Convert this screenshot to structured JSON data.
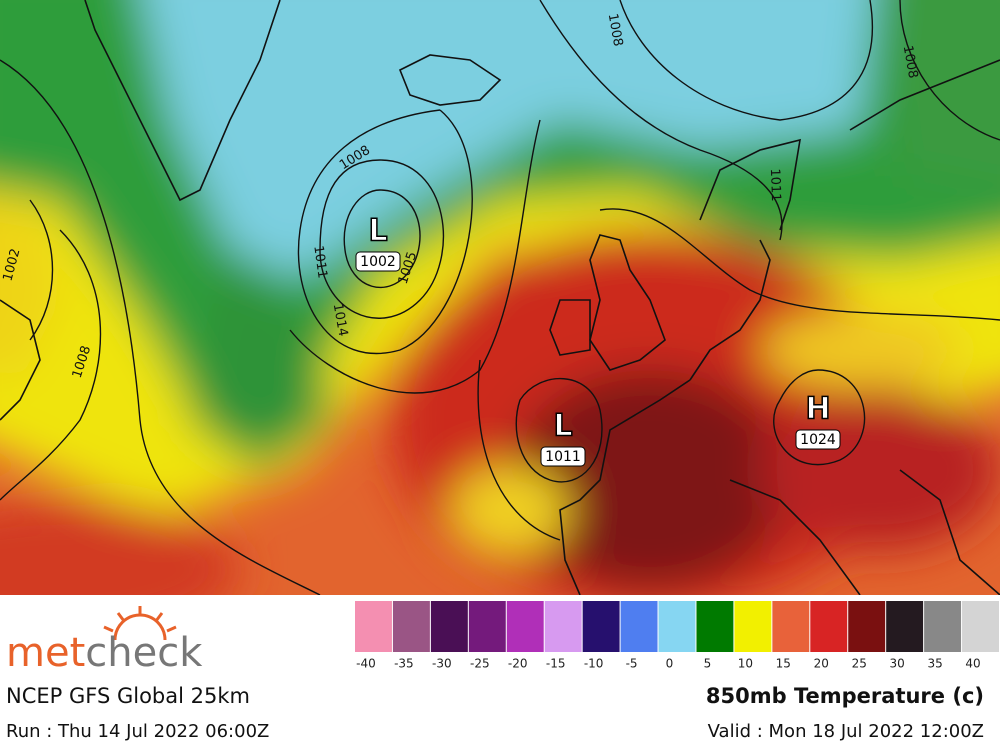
{
  "map": {
    "pressure_centers": [
      {
        "type": "L",
        "value": "1002"
      },
      {
        "type": "L",
        "value": "1011"
      },
      {
        "type": "H",
        "value": "1024"
      }
    ],
    "isobar_labels": [
      "1008",
      "1008",
      "1011",
      "1014",
      "1005",
      "1002",
      "1008",
      "1011",
      "1008"
    ]
  },
  "legend": {
    "ticks": [
      -40,
      -35,
      -30,
      -25,
      -20,
      -15,
      -10,
      -5,
      0,
      5,
      10,
      15,
      20,
      25,
      30,
      35,
      40
    ],
    "colors": [
      "#f48fb1",
      "#9a5585",
      "#4a0f55",
      "#741a7c",
      "#b02fb8",
      "#d79af0",
      "#26106e",
      "#4f7ef0",
      "#86d6f2",
      "#007a00",
      "#f2f000",
      "#e8623a",
      "#d82424",
      "#7a1010",
      "#241a20",
      "#888888",
      "#d4d4d4"
    ]
  },
  "footer": {
    "logo_parts": [
      "met",
      "check"
    ],
    "model": "NCEP GFS Global 25km",
    "title": "850mb Temperature (c)",
    "run": "Run : Thu 14 Jul 2022 06:00Z",
    "valid": "Valid : Mon 18 Jul 2022 12:00Z"
  }
}
